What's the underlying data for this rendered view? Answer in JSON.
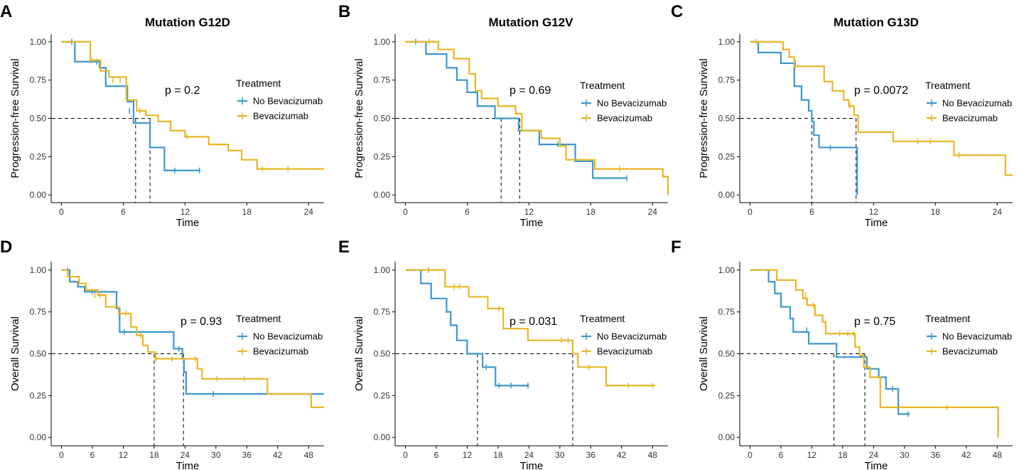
{
  "colors": {
    "no_bev": "#3d97cb",
    "bev": "#e8b625",
    "axis": "#000000",
    "median_line": "#000000"
  },
  "legend": {
    "title": "Treatment",
    "labels": [
      "No Bevacizumab",
      "Bevacizumab"
    ]
  },
  "chart_data": [
    {
      "letter": "A",
      "type": "line",
      "title": "Mutation G12D",
      "xlabel": "Time",
      "ylabel": "Progression-free Survival",
      "xlim": [
        -1,
        25.5
      ],
      "ylim": [
        -0.05,
        1.05
      ],
      "xticks": [
        0,
        6,
        12,
        18,
        24
      ],
      "yticks": [
        0.0,
        0.25,
        0.5,
        0.75,
        1.0
      ],
      "p_value": "p = 0.2",
      "medians": [
        7.2,
        8.6
      ],
      "series": [
        {
          "name": "No Bevacizumab",
          "steps": [
            [
              0,
              1
            ],
            [
              1.3,
              0.87
            ],
            [
              3.7,
              0.83
            ],
            [
              4.3,
              0.71
            ],
            [
              6.4,
              0.61
            ],
            [
              7,
              0.47
            ],
            [
              8.6,
              0.31
            ],
            [
              10,
              0.16
            ],
            [
              13.5,
              0.16
            ]
          ],
          "censors": [
            [
              1,
              1
            ],
            [
              3.4,
              0.87
            ],
            [
              6.6,
              0.55
            ],
            [
              11,
              0.16
            ],
            [
              13.4,
              0.16
            ]
          ]
        },
        {
          "name": "Bevacizumab",
          "steps": [
            [
              0,
              1
            ],
            [
              2.8,
              0.88
            ],
            [
              3.8,
              0.81
            ],
            [
              4.6,
              0.77
            ],
            [
              6.3,
              0.62
            ],
            [
              7.3,
              0.55
            ],
            [
              8.2,
              0.52
            ],
            [
              9.4,
              0.48
            ],
            [
              10.6,
              0.42
            ],
            [
              12,
              0.38
            ],
            [
              14.3,
              0.33
            ],
            [
              16.2,
              0.29
            ],
            [
              17.5,
              0.23
            ],
            [
              19,
              0.17
            ],
            [
              25.5,
              0.17
            ]
          ],
          "censors": [
            [
              3,
              0.88
            ],
            [
              5,
              0.75
            ],
            [
              5.7,
              0.75
            ],
            [
              7.6,
              0.55
            ],
            [
              12.2,
              0.38
            ],
            [
              19.5,
              0.17
            ],
            [
              22,
              0.17
            ]
          ]
        }
      ]
    },
    {
      "letter": "B",
      "type": "line",
      "title": "Mutation G12V",
      "xlabel": "Time",
      "ylabel": "Progression-free Survival",
      "xlim": [
        -1,
        25.5
      ],
      "ylim": [
        -0.05,
        1.05
      ],
      "xticks": [
        0,
        6,
        12,
        18,
        24
      ],
      "yticks": [
        0.0,
        0.25,
        0.5,
        0.75,
        1.0
      ],
      "p_value": "p = 0.69",
      "medians": [
        9.3,
        11.1
      ],
      "series": [
        {
          "name": "No Bevacizumab",
          "steps": [
            [
              0,
              1
            ],
            [
              2,
              0.92
            ],
            [
              4,
              0.83
            ],
            [
              5,
              0.75
            ],
            [
              6,
              0.67
            ],
            [
              7,
              0.58
            ],
            [
              8.7,
              0.5
            ],
            [
              11,
              0.42
            ],
            [
              13,
              0.33
            ],
            [
              16.5,
              0.22
            ],
            [
              18.2,
              0.11
            ],
            [
              21.5,
              0.11
            ]
          ],
          "censors": [
            [
              1,
              1
            ],
            [
              14.8,
              0.33
            ],
            [
              21.5,
              0.11
            ]
          ]
        },
        {
          "name": "Bevacizumab",
          "steps": [
            [
              0,
              1
            ],
            [
              3.2,
              0.95
            ],
            [
              4.7,
              0.89
            ],
            [
              6.2,
              0.79
            ],
            [
              6.8,
              0.68
            ],
            [
              7.4,
              0.63
            ],
            [
              9,
              0.58
            ],
            [
              10.7,
              0.53
            ],
            [
              11.3,
              0.42
            ],
            [
              13.2,
              0.37
            ],
            [
              15,
              0.32
            ],
            [
              15.6,
              0.23
            ],
            [
              17.8,
              0.23
            ],
            [
              18.4,
              0.17
            ],
            [
              24.5,
              0.17
            ],
            [
              25,
              0.12
            ],
            [
              25.5,
              0
            ]
          ],
          "censors": [
            [
              2.3,
              1
            ],
            [
              20.8,
              0.17
            ]
          ]
        }
      ]
    },
    {
      "letter": "C",
      "type": "line",
      "title": "Mutation G13D",
      "xlabel": "Time",
      "ylabel": "Progression-free Survival",
      "xlim": [
        -1,
        25.5
      ],
      "ylim": [
        -0.05,
        1.05
      ],
      "xticks": [
        0,
        6,
        12,
        18,
        24
      ],
      "yticks": [
        0.0,
        0.25,
        0.5,
        0.75,
        1.0
      ],
      "p_value": "p = 0.0072",
      "medians": [
        6,
        10.3
      ],
      "series": [
        {
          "name": "No Bevacizumab",
          "steps": [
            [
              0,
              1
            ],
            [
              0.8,
              0.93
            ],
            [
              3,
              0.86
            ],
            [
              4.3,
              0.71
            ],
            [
              5,
              0.62
            ],
            [
              5.7,
              0.55
            ],
            [
              6,
              0.48
            ],
            [
              6.2,
              0.39
            ],
            [
              6.7,
              0.31
            ],
            [
              10.3,
              0.31
            ],
            [
              10.4,
              0
            ]
          ],
          "censors": [
            [
              4.4,
              0.86
            ],
            [
              7.8,
              0.31
            ]
          ]
        },
        {
          "name": "Bevacizumab",
          "steps": [
            [
              0,
              1
            ],
            [
              3.2,
              0.95
            ],
            [
              3.8,
              0.9
            ],
            [
              4.3,
              0.84
            ],
            [
              7.2,
              0.74
            ],
            [
              8,
              0.68
            ],
            [
              9.1,
              0.62
            ],
            [
              9.6,
              0.58
            ],
            [
              10.1,
              0.52
            ],
            [
              10.5,
              0.41
            ],
            [
              13.9,
              0.35
            ],
            [
              19.8,
              0.26
            ],
            [
              24.5,
              0.26
            ],
            [
              24.8,
              0.13
            ],
            [
              25.5,
              0.13
            ]
          ],
          "censors": [
            [
              0.6,
              1
            ],
            [
              9.7,
              0.58
            ],
            [
              16.3,
              0.35
            ],
            [
              17.5,
              0.35
            ],
            [
              20.3,
              0.26
            ]
          ]
        }
      ]
    },
    {
      "letter": "D",
      "type": "line",
      "title": "",
      "xlabel": "Time",
      "ylabel": "Overall Survival",
      "xlim": [
        -2,
        51
      ],
      "ylim": [
        -0.05,
        1.05
      ],
      "xticks": [
        0,
        6,
        12,
        18,
        24,
        30,
        36,
        42,
        48
      ],
      "yticks": [
        0.0,
        0.25,
        0.5,
        0.75,
        1.0
      ],
      "p_value": "p = 0.93",
      "medians": [
        18,
        23.7
      ],
      "series": [
        {
          "name": "No Bevacizumab",
          "steps": [
            [
              0,
              1
            ],
            [
              1.6,
              0.93
            ],
            [
              3.2,
              0.9
            ],
            [
              4.5,
              0.87
            ],
            [
              10.7,
              0.77
            ],
            [
              11.3,
              0.63
            ],
            [
              21.8,
              0.53
            ],
            [
              23.5,
              0.47
            ],
            [
              23.8,
              0.39
            ],
            [
              24.2,
              0.26
            ],
            [
              51,
              0.26
            ]
          ],
          "censors": [
            [
              1.2,
              1
            ],
            [
              6,
              0.87
            ],
            [
              12.2,
              0.63
            ],
            [
              22.8,
              0.53
            ],
            [
              29.5,
              0.26
            ]
          ]
        },
        {
          "name": "Bevacizumab",
          "steps": [
            [
              0,
              1
            ],
            [
              1.2,
              0.96
            ],
            [
              3.4,
              0.92
            ],
            [
              4.8,
              0.88
            ],
            [
              7.1,
              0.85
            ],
            [
              8.6,
              0.78
            ],
            [
              11.1,
              0.74
            ],
            [
              13.5,
              0.66
            ],
            [
              14.6,
              0.61
            ],
            [
              15.8,
              0.55
            ],
            [
              16.8,
              0.51
            ],
            [
              18.2,
              0.47
            ],
            [
              26.4,
              0.41
            ],
            [
              27.3,
              0.35
            ],
            [
              40,
              0.26
            ],
            [
              48.5,
              0.18
            ],
            [
              51,
              0.18
            ]
          ],
          "censors": [
            [
              6.5,
              0.85
            ],
            [
              7.5,
              0.85
            ],
            [
              12.5,
              0.74
            ],
            [
              15.4,
              0.61
            ],
            [
              18.4,
              0.47
            ],
            [
              21.5,
              0.47
            ],
            [
              26,
              0.47
            ],
            [
              30.2,
              0.35
            ],
            [
              35.5,
              0.35
            ]
          ]
        }
      ]
    },
    {
      "letter": "E",
      "type": "line",
      "title": "",
      "xlabel": "Time",
      "ylabel": "Overall Survival",
      "xlim": [
        -2,
        51
      ],
      "ylim": [
        -0.05,
        1.05
      ],
      "xticks": [
        0,
        6,
        12,
        18,
        24,
        30,
        36,
        42,
        48
      ],
      "yticks": [
        0.0,
        0.25,
        0.5,
        0.75,
        1.0
      ],
      "p_value": "p = 0.031",
      "medians": [
        14,
        32.5
      ],
      "series": [
        {
          "name": "No Bevacizumab",
          "steps": [
            [
              0,
              1
            ],
            [
              3,
              0.92
            ],
            [
              5,
              0.83
            ],
            [
              8,
              0.75
            ],
            [
              8.8,
              0.67
            ],
            [
              10,
              0.58
            ],
            [
              12,
              0.5
            ],
            [
              15,
              0.42
            ],
            [
              17.5,
              0.31
            ],
            [
              24,
              0.31
            ]
          ],
          "censors": [
            [
              4.5,
              1
            ],
            [
              15.7,
              0.42
            ],
            [
              18.2,
              0.31
            ],
            [
              20.5,
              0.31
            ],
            [
              23.8,
              0.31
            ]
          ]
        },
        {
          "name": "Bevacizumab",
          "steps": [
            [
              0,
              1
            ],
            [
              7.7,
              0.9
            ],
            [
              12.3,
              0.84
            ],
            [
              16,
              0.77
            ],
            [
              19,
              0.65
            ],
            [
              23.8,
              0.58
            ],
            [
              32.5,
              0.5
            ],
            [
              33.5,
              0.42
            ],
            [
              39,
              0.31
            ],
            [
              48.5,
              0.31
            ]
          ],
          "censors": [
            [
              4.5,
              1
            ],
            [
              9.5,
              0.9
            ],
            [
              10.5,
              0.9
            ],
            [
              18.2,
              0.77
            ],
            [
              30.3,
              0.58
            ],
            [
              31.6,
              0.58
            ],
            [
              35.6,
              0.42
            ],
            [
              43.3,
              0.31
            ],
            [
              48,
              0.31
            ]
          ]
        }
      ]
    },
    {
      "letter": "F",
      "type": "line",
      "title": "",
      "xlabel": "Time",
      "ylabel": "Overall Survival",
      "xlim": [
        -2,
        51
      ],
      "ylim": [
        -0.05,
        1.05
      ],
      "xticks": [
        0,
        6,
        12,
        18,
        24,
        30,
        36,
        42,
        48
      ],
      "yticks": [
        0.0,
        0.25,
        0.5,
        0.75,
        1.0
      ],
      "p_value": "p = 0.75",
      "medians": [
        16.3,
        22.3
      ],
      "series": [
        {
          "name": "No Bevacizumab",
          "steps": [
            [
              0,
              1
            ],
            [
              3.6,
              0.93
            ],
            [
              4.8,
              0.86
            ],
            [
              6,
              0.78
            ],
            [
              7.8,
              0.71
            ],
            [
              8.4,
              0.63
            ],
            [
              11.4,
              0.56
            ],
            [
              16.8,
              0.48
            ],
            [
              22.7,
              0.41
            ],
            [
              25,
              0.36
            ],
            [
              26.4,
              0.29
            ],
            [
              28.5,
              0.29
            ],
            [
              28.8,
              0.14
            ],
            [
              31,
              0.14
            ]
          ],
          "censors": [
            [
              11,
              0.64
            ],
            [
              27.7,
              0.29
            ],
            [
              30.7,
              0.14
            ]
          ]
        },
        {
          "name": "Bevacizumab",
          "steps": [
            [
              0,
              1
            ],
            [
              5.2,
              0.94
            ],
            [
              8.9,
              0.88
            ],
            [
              10.3,
              0.83
            ],
            [
              11.1,
              0.79
            ],
            [
              12.6,
              0.73
            ],
            [
              14.1,
              0.69
            ],
            [
              14.7,
              0.62
            ],
            [
              20.4,
              0.54
            ],
            [
              21.3,
              0.49
            ],
            [
              22.1,
              0.42
            ],
            [
              23.3,
              0.36
            ],
            [
              25.3,
              0.18
            ],
            [
              48,
              0.18
            ],
            [
              48.2,
              0
            ]
          ],
          "censors": [
            [
              10.8,
              0.85
            ],
            [
              12.3,
              0.79
            ],
            [
              17.4,
              0.62
            ],
            [
              19,
              0.62
            ],
            [
              20.1,
              0.62
            ],
            [
              38.2,
              0.18
            ]
          ]
        }
      ]
    }
  ]
}
